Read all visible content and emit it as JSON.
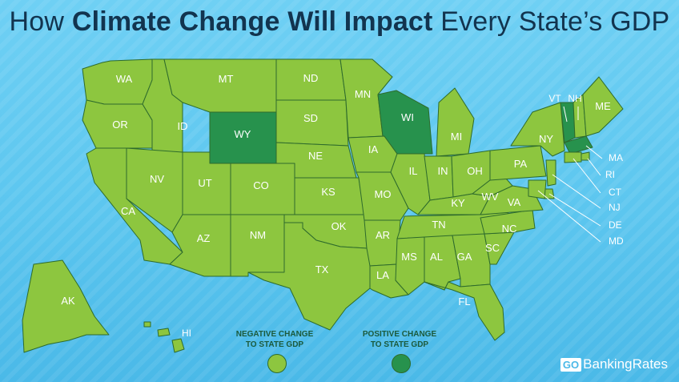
{
  "title": {
    "prefix": "How ",
    "bold": "Climate Change Will Impact",
    "suffix": " Every State’s GDP"
  },
  "colors": {
    "negative": "#8dc63f",
    "positive": "#27924d",
    "border": "#2e6b2c"
  },
  "states": [
    {
      "abbr": "WA",
      "impact": "negative"
    },
    {
      "abbr": "OR",
      "impact": "negative"
    },
    {
      "abbr": "CA",
      "impact": "negative"
    },
    {
      "abbr": "ID",
      "impact": "negative"
    },
    {
      "abbr": "NV",
      "impact": "negative"
    },
    {
      "abbr": "MT",
      "impact": "negative"
    },
    {
      "abbr": "WY",
      "impact": "positive"
    },
    {
      "abbr": "UT",
      "impact": "negative"
    },
    {
      "abbr": "AZ",
      "impact": "negative"
    },
    {
      "abbr": "CO",
      "impact": "negative"
    },
    {
      "abbr": "NM",
      "impact": "negative"
    },
    {
      "abbr": "ND",
      "impact": "negative"
    },
    {
      "abbr": "SD",
      "impact": "negative"
    },
    {
      "abbr": "NE",
      "impact": "negative"
    },
    {
      "abbr": "KS",
      "impact": "negative"
    },
    {
      "abbr": "OK",
      "impact": "negative"
    },
    {
      "abbr": "TX",
      "impact": "negative"
    },
    {
      "abbr": "MN",
      "impact": "negative"
    },
    {
      "abbr": "IA",
      "impact": "negative"
    },
    {
      "abbr": "MO",
      "impact": "negative"
    },
    {
      "abbr": "AR",
      "impact": "negative"
    },
    {
      "abbr": "LA",
      "impact": "negative"
    },
    {
      "abbr": "WI",
      "impact": "positive"
    },
    {
      "abbr": "IL",
      "impact": "negative"
    },
    {
      "abbr": "MI",
      "impact": "negative"
    },
    {
      "abbr": "IN",
      "impact": "negative"
    },
    {
      "abbr": "OH",
      "impact": "negative"
    },
    {
      "abbr": "KY",
      "impact": "negative"
    },
    {
      "abbr": "TN",
      "impact": "negative"
    },
    {
      "abbr": "MS",
      "impact": "negative"
    },
    {
      "abbr": "AL",
      "impact": "negative"
    },
    {
      "abbr": "GA",
      "impact": "negative"
    },
    {
      "abbr": "FL",
      "impact": "negative"
    },
    {
      "abbr": "SC",
      "impact": "negative"
    },
    {
      "abbr": "NC",
      "impact": "negative"
    },
    {
      "abbr": "VA",
      "impact": "negative"
    },
    {
      "abbr": "WV",
      "impact": "negative"
    },
    {
      "abbr": "PA",
      "impact": "negative"
    },
    {
      "abbr": "NY",
      "impact": "negative"
    },
    {
      "abbr": "VT",
      "impact": "positive"
    },
    {
      "abbr": "NH",
      "impact": "negative"
    },
    {
      "abbr": "ME",
      "impact": "negative"
    },
    {
      "abbr": "MA",
      "impact": "positive"
    },
    {
      "abbr": "RI",
      "impact": "negative"
    },
    {
      "abbr": "CT",
      "impact": "negative"
    },
    {
      "abbr": "NJ",
      "impact": "negative"
    },
    {
      "abbr": "DE",
      "impact": "negative"
    },
    {
      "abbr": "MD",
      "impact": "negative"
    },
    {
      "abbr": "AK",
      "impact": "negative"
    },
    {
      "abbr": "HI",
      "impact": "negative"
    }
  ],
  "legend": {
    "negative": {
      "line1": "NEGATIVE CHANGE",
      "line2": "TO STATE GDP"
    },
    "positive": {
      "line1": "POSITIVE CHANGE",
      "line2": "TO STATE GDP"
    }
  },
  "brand": {
    "go": "GO",
    "rest": "BankingRates"
  }
}
